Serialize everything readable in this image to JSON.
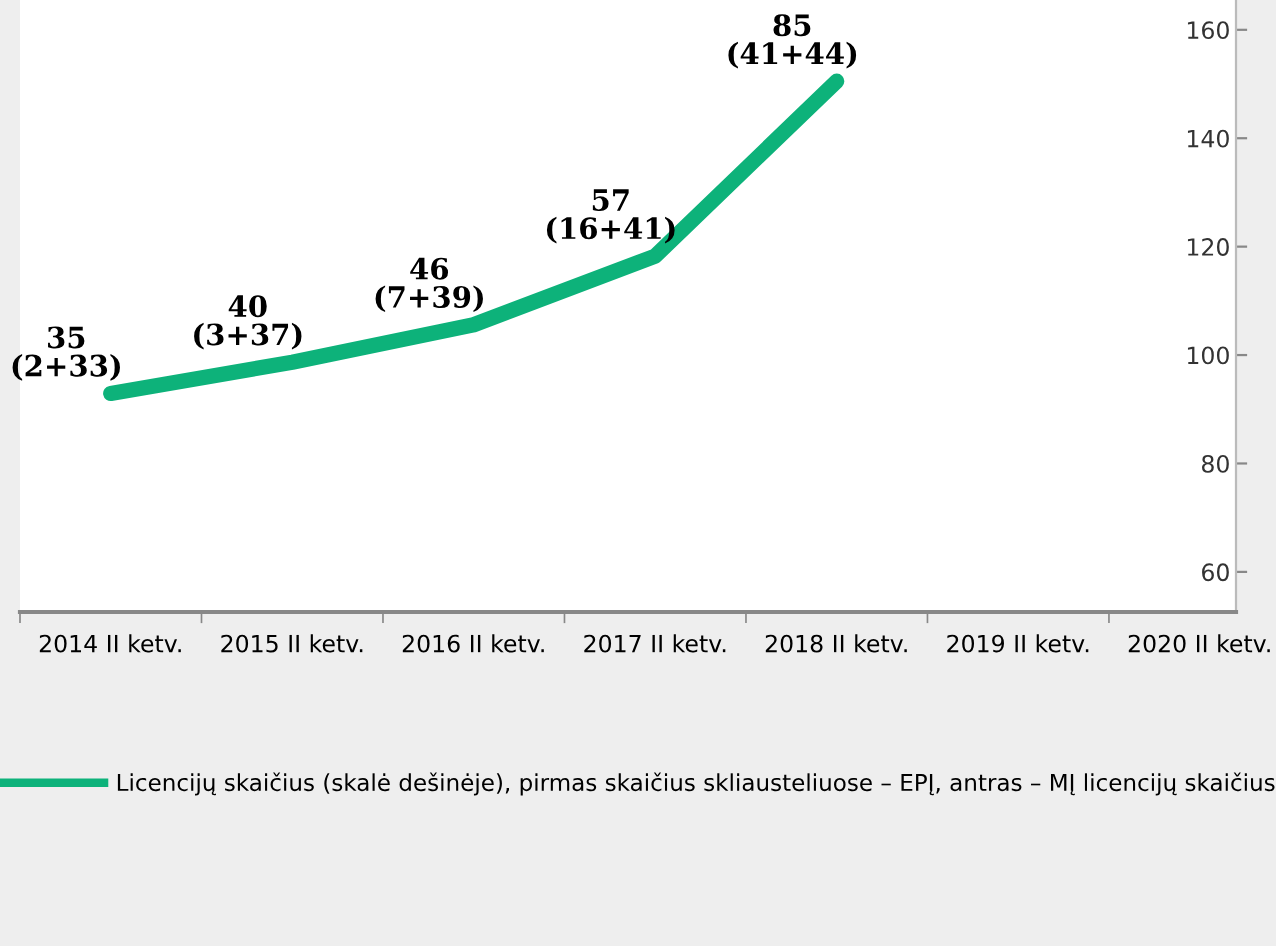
{
  "chart_data": {
    "type": "line",
    "categories": [
      "2014 II ketv.",
      "2015 II ketv.",
      "2016 II ketv.",
      "2017 II ketv.",
      "2018 II ketv.",
      "2019 II ketv.",
      "2020 II ketv."
    ],
    "series": [
      {
        "name": "Licencijų skaičius (skalė dešinėje), pirmas skaičius skliausteliuose – EPĮ, antras – MĮ licencijų skaičius",
        "color": "#0db27a",
        "axis": "y2",
        "values": [
          35,
          40,
          46,
          57,
          85,
          null,
          null
        ],
        "value_labels": [
          "35\n(2+33)",
          "40\n(3+37)",
          "46\n(7+39)",
          "57\n(16+41)",
          "85\n(41+44)",
          null,
          null
        ]
      }
    ],
    "ylim": [
      52.6,
      165.5
    ],
    "yticks": [
      60,
      80,
      100,
      120,
      140,
      160
    ],
    "y2lim": [
      0,
      98
    ],
    "tick_labels": "xy",
    "marker": "none",
    "line_style": "solid",
    "grid": false,
    "legend": "bottom"
  }
}
